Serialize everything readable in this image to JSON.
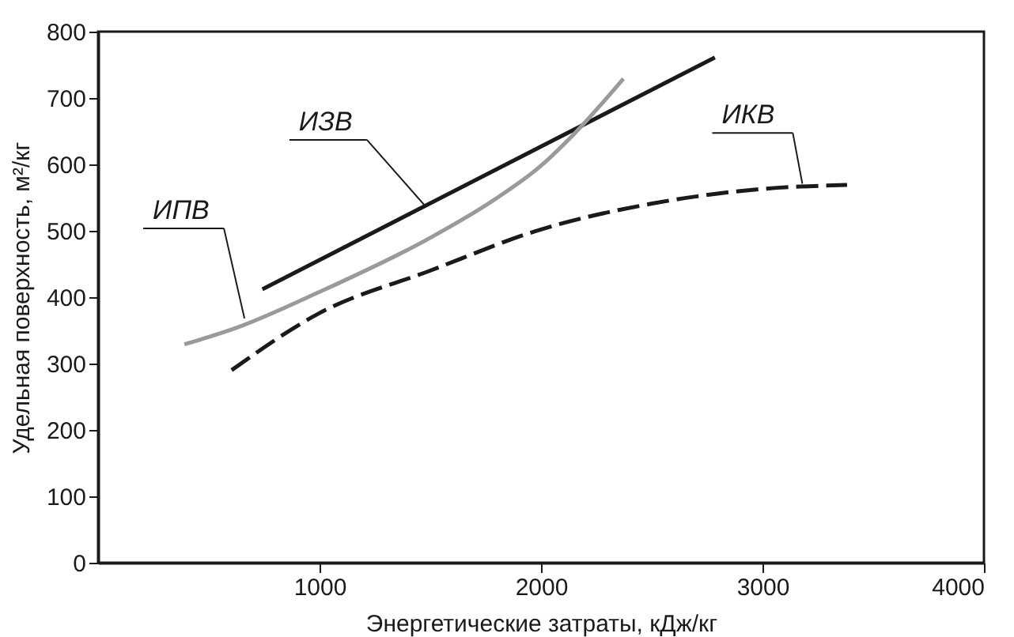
{
  "chart_data": {
    "type": "line",
    "xlabel": "Энергетические затраты, кДж/кг",
    "ylabel": "Удельная поверхность, м²/кг",
    "xlim": [
      0,
      4000
    ],
    "xticks": [
      1000,
      2000,
      3000,
      4000
    ],
    "ylim": [
      0,
      800
    ],
    "yticks": [
      0,
      100,
      200,
      300,
      400,
      500,
      600,
      700,
      800
    ],
    "grid": false,
    "marker": "none",
    "series": [
      {
        "color": "#1a1a1a",
        "line_style": "solid",
        "x": [
          742,
          2785
        ],
        "values": [
          412,
          761
        ]
      },
      {
        "color": "#9a9a9a",
        "line_style": "solid",
        "x": [
          390,
          626,
          1000,
          1492,
          1781,
          2000,
          2147,
          2372
        ],
        "values": [
          329,
          354,
          408,
          488,
          545,
          598,
          645,
          729
        ]
      },
      {
        "color": "#1a1a1a",
        "line_style": "dashed",
        "x": [
          603,
          1000,
          1492,
          2000,
          2502,
          3000,
          3382
        ],
        "values": [
          290,
          376,
          439,
          502,
          541,
          563,
          569
        ]
      }
    ],
    "annotations": [
      {
        "text": "ИЗВ",
        "x": 1478,
        "y": 537
      },
      {
        "text": "ИПВ",
        "x": 661,
        "y": 368
      },
      {
        "text": "ИКВ",
        "x": 3180,
        "y": 571
      }
    ]
  }
}
